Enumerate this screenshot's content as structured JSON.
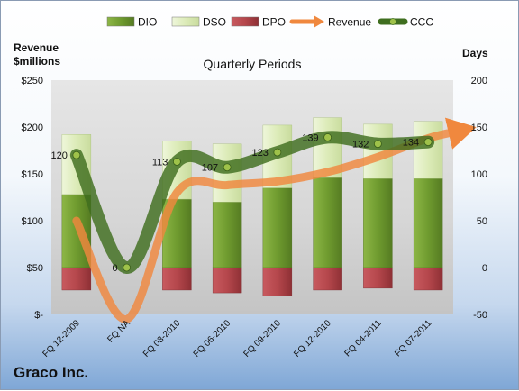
{
  "chart_data": {
    "type": "bar",
    "title": "Quarterly Periods",
    "categories": [
      "FQ 12-2009",
      "FQ NA",
      "FQ 03-2010",
      "FQ 06-2010",
      "FQ 09-2010",
      "FQ 12-2010",
      "FQ 04-2011",
      "FQ 07-2011"
    ],
    "left_axis": {
      "label_line1": "Revenue",
      "label_line2": "$millions",
      "ylim": [
        0,
        250
      ],
      "ticks": [
        0,
        50,
        100,
        150,
        200,
        250
      ],
      "tick_labels": [
        "$-",
        "$50",
        "$100",
        "$150",
        "$200",
        "$250"
      ]
    },
    "right_axis": {
      "label": "Days",
      "ylim": [
        -50,
        200
      ],
      "ticks": [
        -50,
        0,
        50,
        100,
        150,
        200
      ],
      "tick_labels": [
        "-50",
        "0",
        "50",
        "100",
        "150",
        "200"
      ]
    },
    "series": [
      {
        "name": "DIO",
        "type": "bar",
        "axis": "right",
        "color": "#6f9b2f",
        "values": [
          78,
          0,
          73,
          70,
          85,
          96,
          95,
          95
        ]
      },
      {
        "name": "DSO",
        "type": "bar",
        "axis": "right",
        "stacked_on": "DIO",
        "color": "#dcebb8",
        "values": [
          64,
          0,
          62,
          62,
          67,
          64,
          58,
          61
        ]
      },
      {
        "name": "DPO",
        "type": "bar",
        "axis": "right",
        "direction": "down",
        "color": "#b5474c",
        "values": [
          -24,
          0,
          -24,
          -27,
          -30,
          -24,
          -22,
          -24
        ]
      },
      {
        "name": "Revenue",
        "type": "line",
        "axis": "left",
        "color": "#f0883e",
        "values": [
          100,
          -5,
          130,
          138,
          142,
          152,
          168,
          188
        ]
      },
      {
        "name": "CCC",
        "type": "line",
        "axis": "right",
        "color": "#3f6e1f",
        "values": [
          120,
          0,
          113,
          107,
          123,
          139,
          132,
          134
        ],
        "labels": [
          "120",
          "0",
          "113",
          "107",
          "123",
          "139",
          "132",
          "134"
        ]
      }
    ],
    "legend_position": "top",
    "grid": false
  },
  "company": "Graco Inc.",
  "colors": {
    "plot_bg": "#d8d8d8",
    "ccc_marker": "#9fc24a"
  }
}
